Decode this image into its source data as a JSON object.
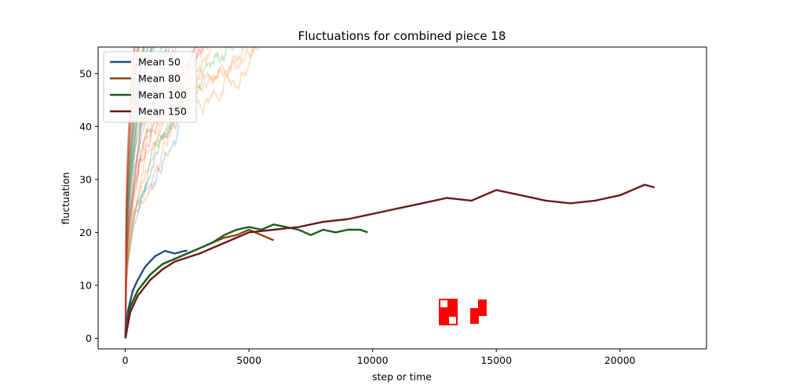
{
  "chart_data": {
    "type": "line",
    "title": "Fluctuations for combined piece 18",
    "xlabel": "step or time",
    "ylabel": "fluctuation",
    "xlim": [
      -1100,
      23500
    ],
    "ylim": [
      -2,
      55
    ],
    "xticks": [
      0,
      5000,
      10000,
      15000,
      20000
    ],
    "yticks": [
      0,
      10,
      20,
      30,
      40,
      50
    ],
    "grid": false,
    "legend_position": "top-left",
    "series": [
      {
        "name": "Mean 50",
        "color": "#1f4e79",
        "points": [
          [
            0,
            0
          ],
          [
            100,
            5
          ],
          [
            300,
            9
          ],
          [
            500,
            11
          ],
          [
            800,
            13.5
          ],
          [
            1200,
            15.5
          ],
          [
            1600,
            16.5
          ],
          [
            2000,
            16
          ],
          [
            2400,
            16.5
          ],
          [
            2500,
            16.5
          ]
        ]
      },
      {
        "name": "Mean 80",
        "color": "#8b4513",
        "points": [
          [
            0,
            0
          ],
          [
            200,
            6
          ],
          [
            500,
            9
          ],
          [
            1000,
            12
          ],
          [
            1500,
            14
          ],
          [
            2000,
            15
          ],
          [
            2500,
            16
          ],
          [
            3000,
            17
          ],
          [
            3500,
            18
          ],
          [
            4000,
            19
          ],
          [
            4500,
            19.5
          ],
          [
            5000,
            20.5
          ],
          [
            5500,
            19.5
          ],
          [
            6000,
            18.5
          ]
        ]
      },
      {
        "name": "Mean 100",
        "color": "#1a5e1a",
        "points": [
          [
            0,
            0
          ],
          [
            200,
            6
          ],
          [
            500,
            9
          ],
          [
            1000,
            12
          ],
          [
            1500,
            14
          ],
          [
            2000,
            15
          ],
          [
            2500,
            16
          ],
          [
            3000,
            17
          ],
          [
            3500,
            18
          ],
          [
            4000,
            19.5
          ],
          [
            4500,
            20.5
          ],
          [
            5000,
            21
          ],
          [
            5500,
            20.5
          ],
          [
            6000,
            21.5
          ],
          [
            6500,
            21
          ],
          [
            7000,
            20.5
          ],
          [
            7500,
            19.5
          ],
          [
            8000,
            20.5
          ],
          [
            8500,
            20
          ],
          [
            9000,
            20.5
          ],
          [
            9500,
            20.5
          ],
          [
            9800,
            20
          ]
        ]
      },
      {
        "name": "Mean 150",
        "color": "#6b1a1a",
        "points": [
          [
            0,
            0
          ],
          [
            200,
            5
          ],
          [
            500,
            8
          ],
          [
            1000,
            11
          ],
          [
            1500,
            13
          ],
          [
            2000,
            14.5
          ],
          [
            3000,
            16
          ],
          [
            4000,
            18
          ],
          [
            5000,
            20
          ],
          [
            6000,
            20.5
          ],
          [
            7000,
            21
          ],
          [
            8000,
            22
          ],
          [
            9000,
            22.5
          ],
          [
            10000,
            23.5
          ],
          [
            11000,
            24.5
          ],
          [
            12000,
            25.5
          ],
          [
            13000,
            26.5
          ],
          [
            14000,
            26
          ],
          [
            15000,
            28
          ],
          [
            16000,
            27
          ],
          [
            17000,
            26
          ],
          [
            18000,
            25.5
          ],
          [
            19000,
            26
          ],
          [
            20000,
            27
          ],
          [
            21000,
            29
          ],
          [
            21400,
            28.5
          ]
        ]
      }
    ],
    "background_trace_groups": [
      {
        "color": "#1f77b4",
        "count": 9,
        "xmax": 2500
      },
      {
        "color": "#ff7f0e",
        "count": 9,
        "xmax": 6000
      },
      {
        "color": "#2ca02c",
        "count": 9,
        "xmax": 10500
      },
      {
        "color": "#d62728",
        "count": 9,
        "xmax": 22600
      }
    ],
    "annotation_color": "#ff0000"
  }
}
